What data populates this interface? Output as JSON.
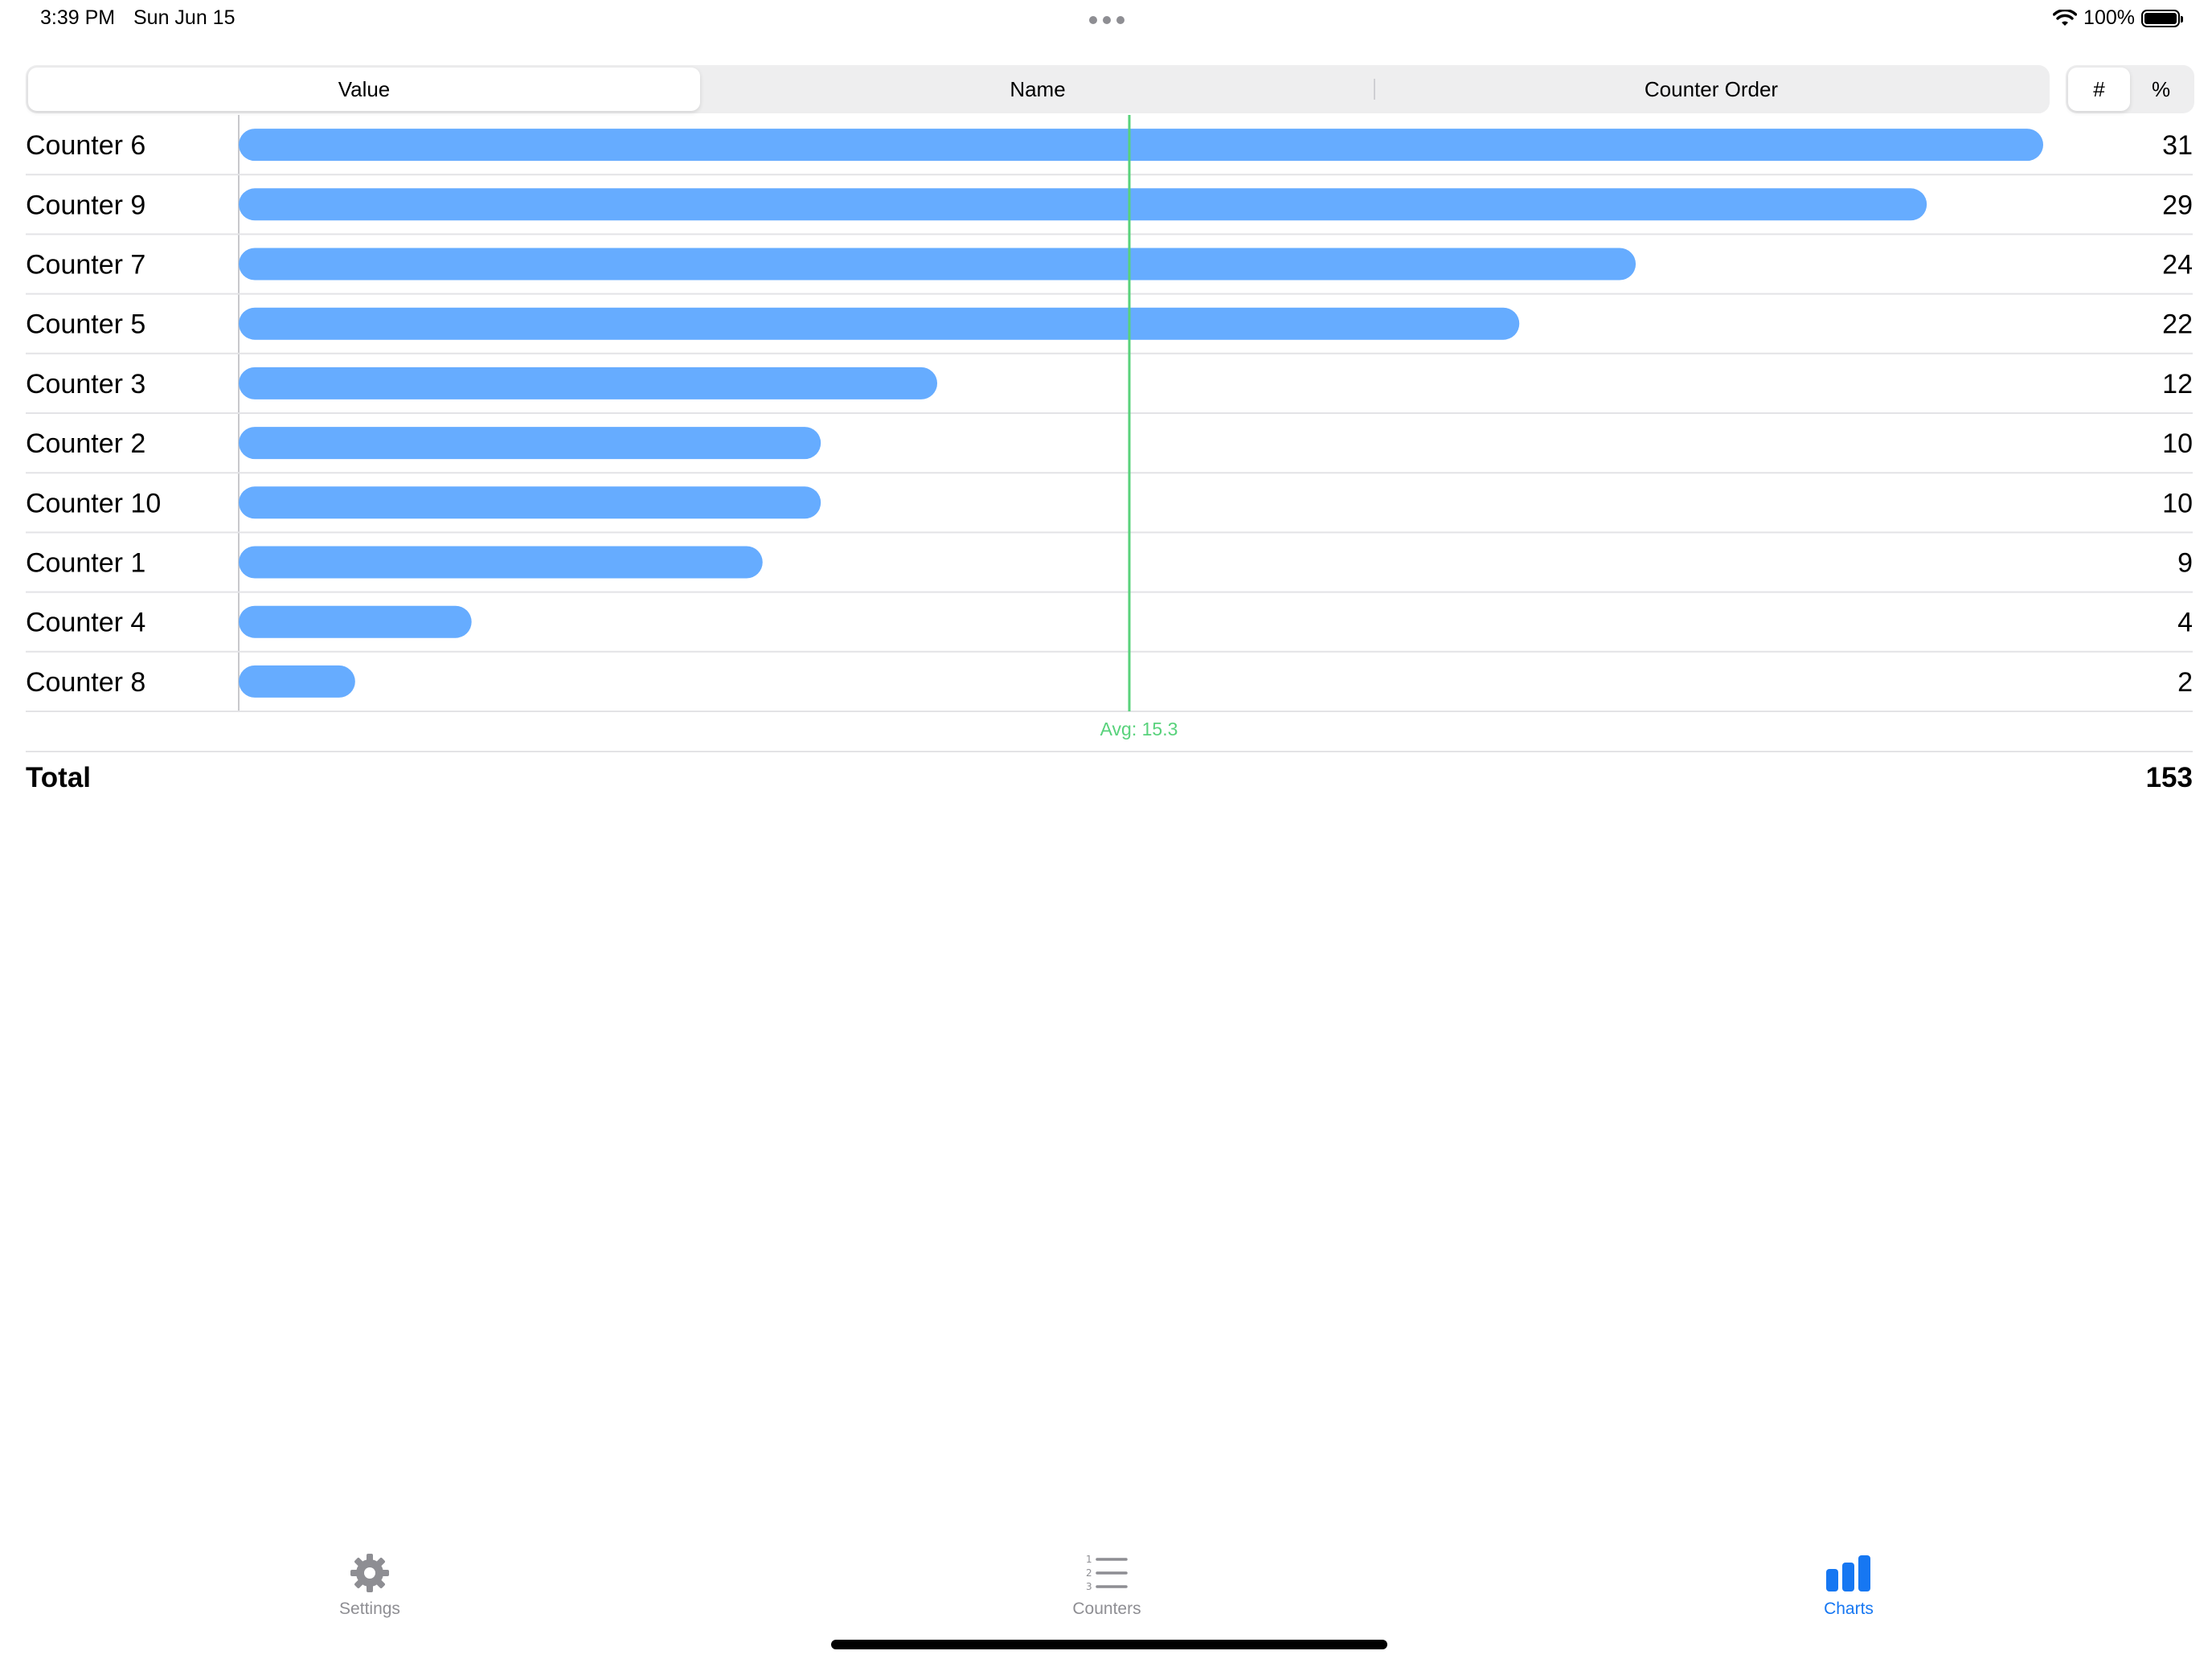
{
  "status_bar": {
    "time": "3:39 PM",
    "date": "Sun Jun 15",
    "battery": "100%",
    "battery_level": 1.0
  },
  "sort_control": {
    "options": [
      "Value",
      "Name",
      "Counter Order"
    ],
    "selected_index": 0
  },
  "mode_control": {
    "options": [
      "#",
      "%"
    ],
    "selected_index": 0
  },
  "chart_data": {
    "type": "bar",
    "orientation": "horizontal",
    "categories": [
      "Counter 6",
      "Counter 9",
      "Counter 7",
      "Counter 5",
      "Counter 3",
      "Counter 2",
      "Counter 10",
      "Counter 1",
      "Counter 4",
      "Counter 8"
    ],
    "values": [
      31,
      29,
      24,
      22,
      12,
      10,
      10,
      9,
      4,
      2
    ],
    "xlim": [
      0,
      31
    ],
    "average": 15.3,
    "average_label": "Avg: 15.3",
    "bar_color": "#66acff",
    "average_color": "#58d27b"
  },
  "total": {
    "label": "Total",
    "value": "153"
  },
  "tab_bar": {
    "tabs": [
      {
        "label": "Settings",
        "icon": "gear-icon"
      },
      {
        "label": "Counters",
        "icon": "numbered-list-icon"
      },
      {
        "label": "Charts",
        "icon": "bar-chart-icon"
      }
    ],
    "active_index": 2,
    "active_color": "#1677f2",
    "inactive_color": "#8e8e93"
  }
}
